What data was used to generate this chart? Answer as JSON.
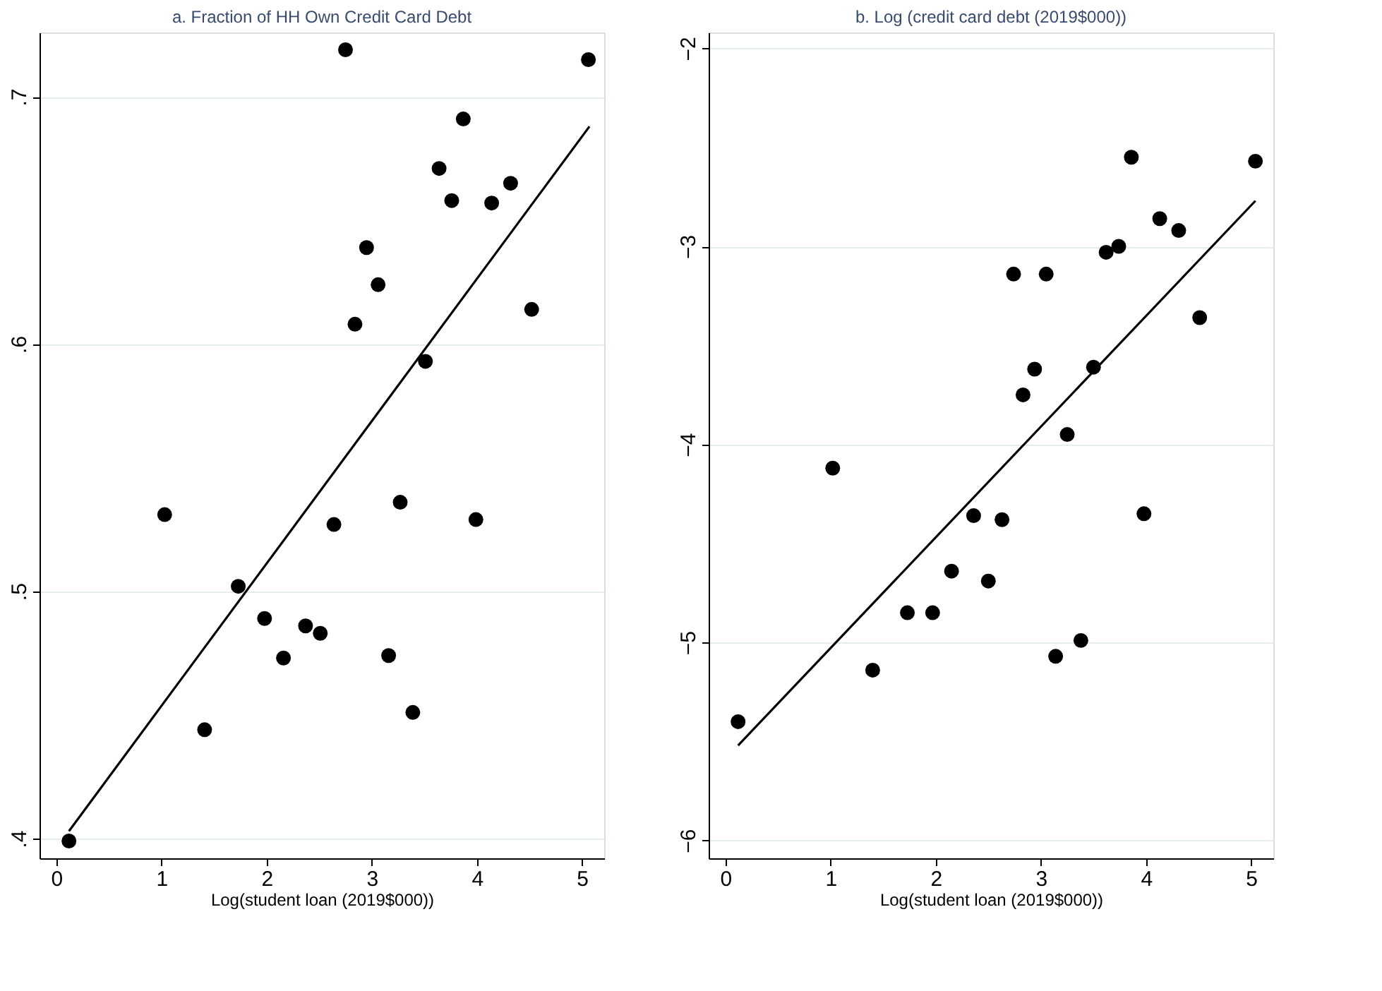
{
  "chart_data": [
    {
      "type": "scatter",
      "title": "a. Fraction of HH Own Credit Card Debt",
      "xlabel": "Log(student loan (2019$000))",
      "series": [
        {
          "color": "#000000",
          "marker": "circle",
          "x": [
            0.12,
            1.03,
            1.41,
            1.73,
            1.98,
            2.16,
            2.37,
            2.51,
            2.64,
            2.75,
            2.84,
            2.95,
            3.06,
            3.16,
            3.27,
            3.39,
            3.51,
            3.64,
            3.76,
            3.87,
            3.99,
            4.14,
            4.32,
            4.52,
            5.06
          ],
          "values": [
            0.399,
            0.531,
            0.444,
            0.502,
            0.489,
            0.473,
            0.486,
            0.483,
            0.527,
            0.719,
            0.608,
            0.639,
            0.624,
            0.474,
            0.536,
            0.451,
            0.593,
            0.671,
            0.658,
            0.691,
            0.529,
            0.657,
            0.665,
            0.614,
            0.715
          ]
        },
        {
          "type": "line",
          "color": "#000000",
          "marker": "none",
          "x": [
            0.12,
            5.07
          ],
          "values": [
            0.403,
            0.688
          ]
        }
      ],
      "xlim": [
        -0.16,
        5.21
      ],
      "ylim": [
        0.392,
        0.726
      ],
      "xticks": [
        0,
        1,
        2,
        3,
        4,
        5
      ],
      "yticks": [
        {
          "value": 0.4,
          "label": ".4"
        },
        {
          "value": 0.5,
          "label": ".5"
        },
        {
          "value": 0.6,
          "label": ".6"
        },
        {
          "value": 0.7,
          "label": ".7"
        }
      ],
      "grid": "y"
    },
    {
      "type": "scatter",
      "title": "b. Log (credit card debt (2019$000))",
      "xlabel": "Log(student loan (2019$000))",
      "series": [
        {
          "color": "#000000",
          "marker": "circle",
          "x": [
            0.12,
            1.02,
            1.4,
            1.73,
            1.97,
            2.15,
            2.36,
            2.5,
            2.63,
            2.74,
            2.83,
            2.94,
            3.05,
            3.14,
            3.25,
            3.38,
            3.5,
            3.62,
            3.74,
            3.86,
            3.98,
            4.13,
            4.31,
            4.51,
            5.04
          ],
          "values": [
            -5.4,
            -4.12,
            -5.14,
            -4.85,
            -4.85,
            -4.64,
            -4.36,
            -4.69,
            -4.38,
            -3.14,
            -3.75,
            -3.62,
            -3.14,
            -5.07,
            -3.95,
            -4.99,
            -3.61,
            -3.03,
            -3.0,
            -2.55,
            -4.35,
            -2.86,
            -2.92,
            -3.36,
            -2.57
          ]
        },
        {
          "type": "line",
          "color": "#000000",
          "marker": "none",
          "x": [
            0.12,
            5.04
          ],
          "values": [
            -5.52,
            -2.77
          ]
        }
      ],
      "xlim": [
        -0.16,
        5.21
      ],
      "ylim": [
        -6.09,
        -1.92
      ],
      "xticks": [
        0,
        1,
        2,
        3,
        4,
        5
      ],
      "yticks": [
        {
          "value": -6,
          "label": "−6"
        },
        {
          "value": -5,
          "label": "−5"
        },
        {
          "value": -4,
          "label": "−4"
        },
        {
          "value": -3,
          "label": "−3"
        },
        {
          "value": -2,
          "label": "−2"
        }
      ],
      "grid": "y"
    }
  ]
}
